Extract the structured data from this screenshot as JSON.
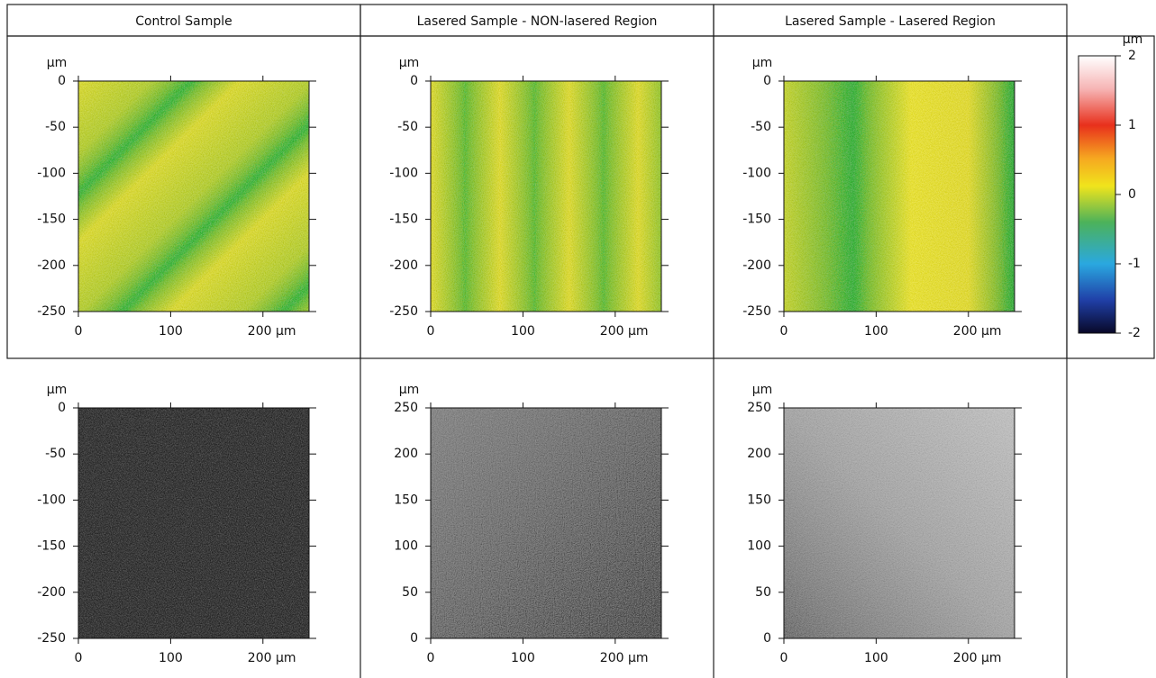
{
  "headers": [
    "Control Sample",
    "Lasered Sample - NON-lasered Region",
    "Lasered Sample - Lasered Region"
  ],
  "panels": [
    {
      "unit": "µm",
      "ylim": [
        0,
        -250
      ],
      "yticks": [
        0,
        -50,
        -100,
        -150,
        -200,
        -250
      ],
      "xlim": [
        0,
        250
      ],
      "xticks": [
        0,
        100,
        {
          "value": 200,
          "label": "200 µm"
        }
      ]
    },
    {
      "unit": "µm",
      "ylim": [
        0,
        -250
      ],
      "yticks": [
        0,
        -50,
        -100,
        -150,
        -200,
        -250
      ],
      "xlim": [
        0,
        250
      ],
      "xticks": [
        0,
        100,
        {
          "value": 200,
          "label": "200 µm"
        }
      ]
    },
    {
      "unit": "µm",
      "ylim": [
        0,
        -250
      ],
      "yticks": [
        0,
        -50,
        -100,
        -150,
        -200,
        -250
      ],
      "xlim": [
        0,
        250
      ],
      "xticks": [
        0,
        100,
        {
          "value": 200,
          "label": "200 µm"
        }
      ]
    },
    {
      "unit": "µm",
      "ylim": [
        0,
        -250
      ],
      "yticks": [
        0,
        -50,
        -100,
        -150,
        -200,
        -250
      ],
      "xlim": [
        0,
        250
      ],
      "xticks": [
        0,
        100,
        {
          "value": 200,
          "label": "200 µm"
        }
      ]
    },
    {
      "unit": "µm",
      "ylim": [
        250,
        0
      ],
      "yticks": [
        250,
        200,
        150,
        100,
        50,
        0
      ],
      "xlim": [
        0,
        250
      ],
      "xticks": [
        0,
        100,
        {
          "value": 200,
          "label": "200 µm"
        }
      ]
    },
    {
      "unit": "µm",
      "ylim": [
        250,
        0
      ],
      "yticks": [
        250,
        200,
        150,
        100,
        50,
        0
      ],
      "xlim": [
        0,
        250
      ],
      "xticks": [
        0,
        100,
        {
          "value": 200,
          "label": "200 µm"
        }
      ]
    }
  ],
  "colorbar": {
    "unit": "µm",
    "lim": [
      2,
      -2
    ],
    "ticks": [
      2,
      1,
      0,
      -1,
      -2
    ]
  }
}
